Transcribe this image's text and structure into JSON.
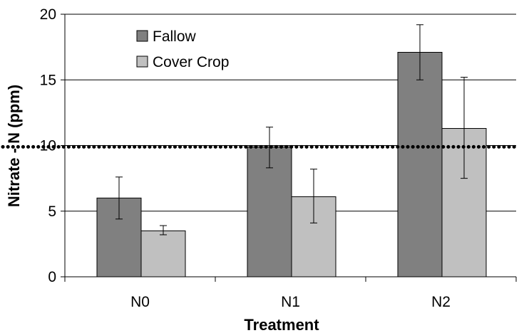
{
  "chart_data": {
    "type": "bar",
    "categories": [
      "N0",
      "N1",
      "N2"
    ],
    "xlabel": "Treatment",
    "ylabel": "Nitrate - N (ppm)",
    "ylim": [
      0,
      20
    ],
    "yticks": [
      0,
      5,
      10,
      15,
      20
    ],
    "grid": true,
    "legend_position": "top-left",
    "reference_line": {
      "value": 9.9,
      "style": "dotted",
      "color": "#000000"
    },
    "series": [
      {
        "name": "Fallow",
        "color": "#808080",
        "values": [
          6.0,
          9.9,
          17.1
        ],
        "error": [
          [
            4.4,
            7.6
          ],
          [
            8.3,
            11.4
          ],
          [
            15.0,
            19.2
          ]
        ]
      },
      {
        "name": "Cover Crop",
        "color": "#c0c0c0",
        "values": [
          3.5,
          6.1,
          11.3
        ],
        "error": [
          [
            3.2,
            3.9
          ],
          [
            4.1,
            8.2
          ],
          [
            7.5,
            15.2
          ]
        ]
      }
    ]
  }
}
